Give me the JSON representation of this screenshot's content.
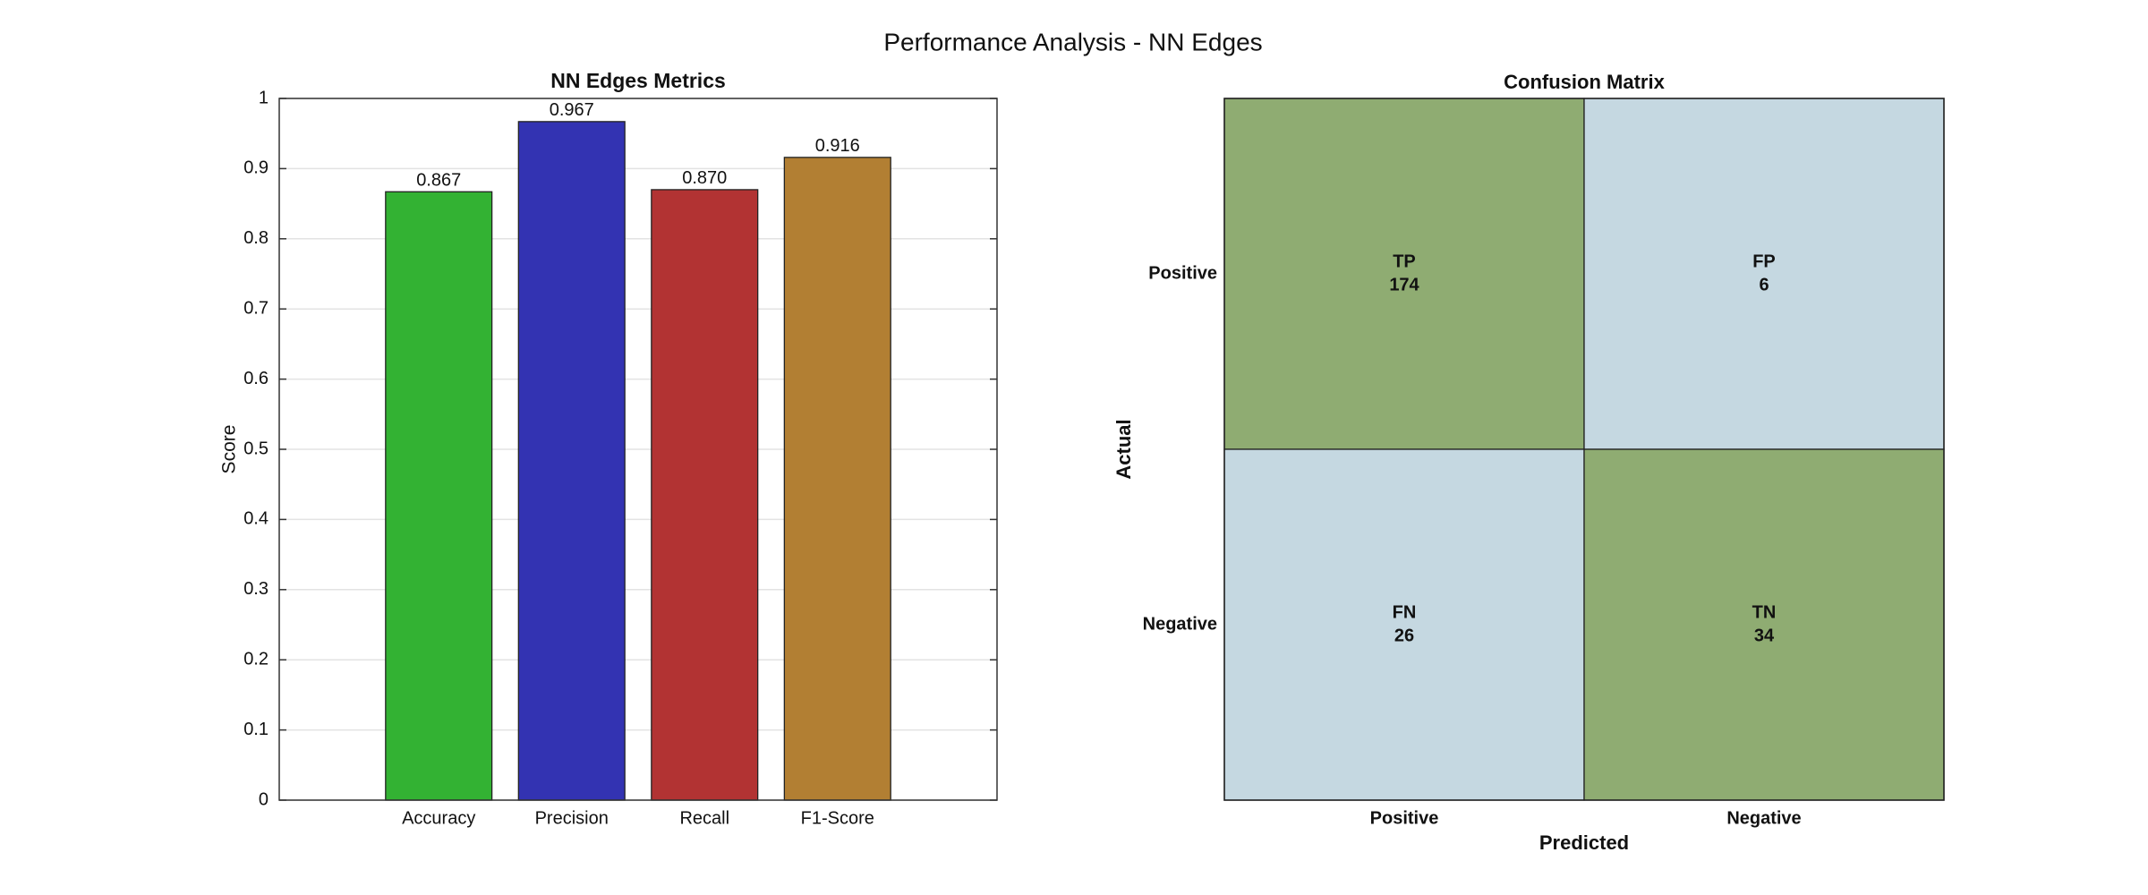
{
  "title": "Performance Analysis - NN Edges",
  "chart_data": [
    {
      "type": "bar",
      "title": "NN Edges Metrics",
      "ylabel": "Score",
      "categories": [
        "Accuracy",
        "Precision",
        "Recall",
        "F1-Score"
      ],
      "values": [
        0.867,
        0.967,
        0.87,
        0.916
      ],
      "value_labels": [
        "0.867",
        "0.967",
        "0.870",
        "0.916"
      ],
      "colors": [
        "#33b233",
        "#3333b2",
        "#b23333",
        "#b27f33"
      ],
      "ylim": [
        0,
        1
      ],
      "yticks": [
        0,
        0.1,
        0.2,
        0.3,
        0.4,
        0.5,
        0.6,
        0.7,
        0.8,
        0.9,
        1
      ],
      "grid": true
    },
    {
      "type": "heatmap",
      "title": "Confusion Matrix",
      "xlabel": "Predicted",
      "ylabel": "Actual",
      "x": [
        "Positive",
        "Negative"
      ],
      "y": [
        "Positive",
        "Negative"
      ],
      "cell_labels": [
        [
          "TP",
          "FP"
        ],
        [
          "FN",
          "TN"
        ]
      ],
      "values": [
        [
          174,
          6
        ],
        [
          26,
          34
        ]
      ],
      "colors": [
        [
          "#8fac72",
          "#c5d8e1"
        ],
        [
          "#c5d8e1",
          "#8fac72"
        ]
      ]
    }
  ]
}
